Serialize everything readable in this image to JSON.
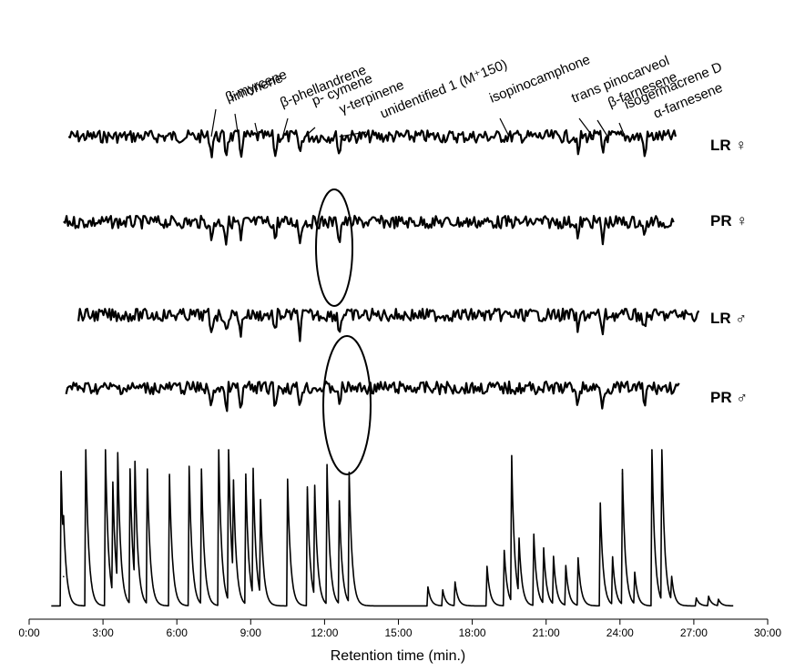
{
  "chart_data": {
    "type": "line",
    "title": "",
    "xlabel": "Retention time (min.)",
    "ylabel": "",
    "xlim": [
      0,
      30
    ],
    "x_ticks": [
      "0:00",
      "3:00",
      "6:00",
      "9:00",
      "12:00",
      "15:00",
      "18:00",
      "21:00",
      "24:00",
      "27:00",
      "30:00"
    ],
    "grid": false,
    "series": [
      {
        "name": "LR ♀",
        "x_start": 1.6,
        "x_end": 26.3
      },
      {
        "name": "PR ♀",
        "x_start": 1.4,
        "x_end": 26.2
      },
      {
        "name": "LR ♂",
        "x_start": 2.0,
        "x_end": 27.2
      },
      {
        "name": "PR ♂",
        "x_start": 1.5,
        "x_end": 26.4
      }
    ],
    "fid_peaks": [
      {
        "t": 1.3,
        "h": 0.85
      },
      {
        "t": 1.4,
        "h": 0.2
      },
      {
        "t": 2.3,
        "h": 1.0
      },
      {
        "t": 3.1,
        "h": 1.0
      },
      {
        "t": 3.4,
        "h": 0.7
      },
      {
        "t": 3.6,
        "h": 0.82
      },
      {
        "t": 4.1,
        "h": 0.85
      },
      {
        "t": 4.3,
        "h": 0.75
      },
      {
        "t": 4.8,
        "h": 0.85
      },
      {
        "t": 5.7,
        "h": 0.83
      },
      {
        "t": 6.5,
        "h": 0.88
      },
      {
        "t": 7.0,
        "h": 0.85
      },
      {
        "t": 7.7,
        "h": 1.0
      },
      {
        "t": 8.1,
        "h": 1.0
      },
      {
        "t": 8.3,
        "h": 0.6
      },
      {
        "t": 8.8,
        "h": 0.82
      },
      {
        "t": 9.1,
        "h": 0.8
      },
      {
        "t": 9.4,
        "h": 0.6
      },
      {
        "t": 10.5,
        "h": 0.8
      },
      {
        "t": 11.3,
        "h": 0.75
      },
      {
        "t": 11.6,
        "h": 0.7
      },
      {
        "t": 12.1,
        "h": 0.88
      },
      {
        "t": 12.6,
        "h": 0.65
      },
      {
        "t": 13.0,
        "h": 0.82
      },
      {
        "t": 16.2,
        "h": 0.12
      },
      {
        "t": 16.8,
        "h": 0.1
      },
      {
        "t": 17.3,
        "h": 0.15
      },
      {
        "t": 18.6,
        "h": 0.25
      },
      {
        "t": 19.3,
        "h": 0.35
      },
      {
        "t": 19.6,
        "h": 0.92
      },
      {
        "t": 19.9,
        "h": 0.35
      },
      {
        "t": 20.5,
        "h": 0.45
      },
      {
        "t": 20.9,
        "h": 0.35
      },
      {
        "t": 21.3,
        "h": 0.3
      },
      {
        "t": 21.8,
        "h": 0.25
      },
      {
        "t": 22.3,
        "h": 0.3
      },
      {
        "t": 23.2,
        "h": 0.65
      },
      {
        "t": 23.7,
        "h": 0.3
      },
      {
        "t": 24.1,
        "h": 0.85
      },
      {
        "t": 24.6,
        "h": 0.2
      },
      {
        "t": 25.3,
        "h": 1.0
      },
      {
        "t": 25.7,
        "h": 1.0
      },
      {
        "t": 26.1,
        "h": 0.15
      },
      {
        "t": 27.1,
        "h": 0.05
      },
      {
        "t": 27.6,
        "h": 0.06
      },
      {
        "t": 28.0,
        "h": 0.04
      }
    ],
    "annotations": [
      {
        "text": "β-myrcene",
        "t": 7.4
      },
      {
        "text": "limonene",
        "t": 8.5
      },
      {
        "text": "β-phellandrene",
        "t": 9.3
      },
      {
        "text": "p- cymene",
        "t": 10.3
      },
      {
        "text": "γ-terpinene",
        "t": 11.2
      },
      {
        "text": "unidentified 1 (M⁺150)",
        "t": 12.6
      },
      {
        "text": "isopinocamphone",
        "t": 19.5
      },
      {
        "text": "trans pinocarveol",
        "t": 22.9
      },
      {
        "text": "β-farnesene",
        "t": 23.5
      },
      {
        "text": "isogermacrene D",
        "t": 24.2
      },
      {
        "text": "α-farnesene",
        "t": 25.2
      }
    ]
  }
}
